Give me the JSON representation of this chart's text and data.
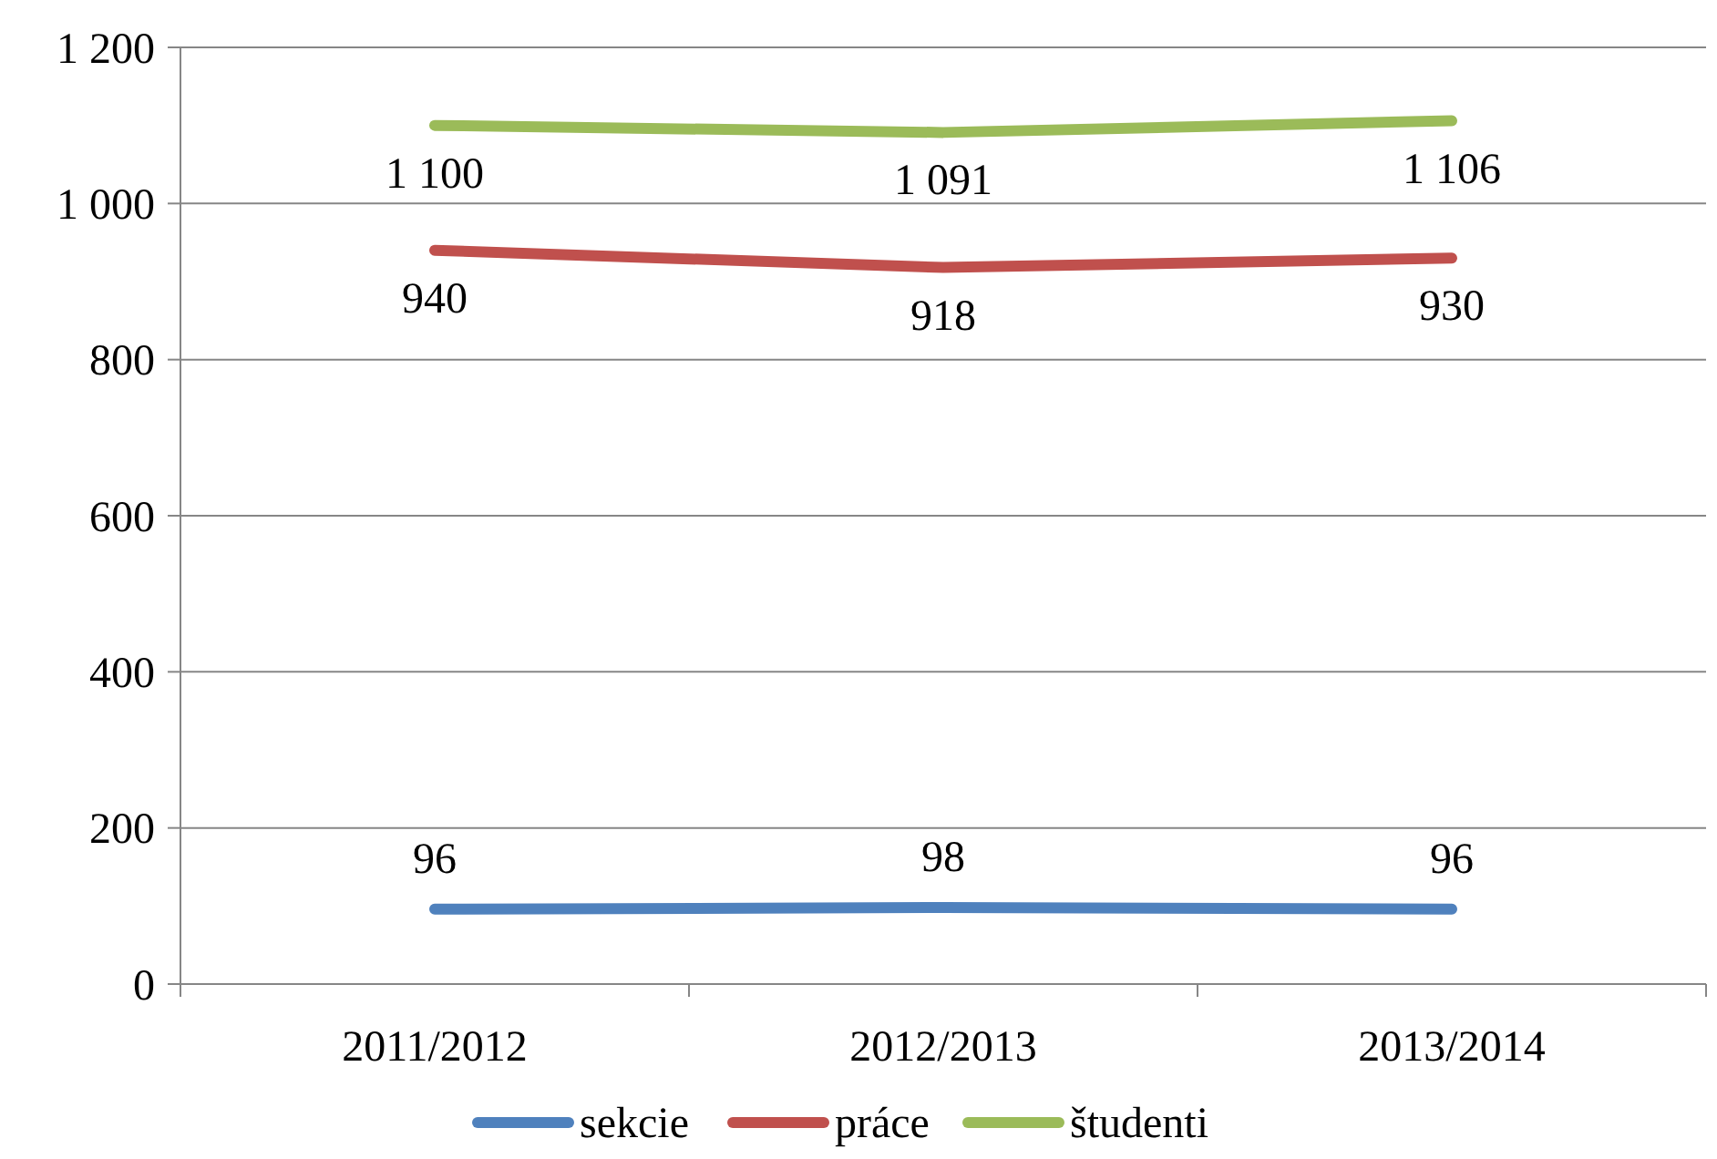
{
  "chart_data": {
    "type": "line",
    "categories": [
      "2011/2012",
      "2012/2013",
      "2013/2014"
    ],
    "series": [
      {
        "name": "sekcie",
        "color": "#4f81bd",
        "values": [
          96,
          98,
          96
        ],
        "value_labels": [
          "96",
          "98",
          "96"
        ]
      },
      {
        "name": "práce",
        "color": "#c0504d",
        "values": [
          940,
          918,
          930
        ],
        "value_labels": [
          "940",
          "918",
          "930"
        ]
      },
      {
        "name": "študenti",
        "color": "#9bbb59",
        "values": [
          1100,
          1091,
          1106
        ],
        "value_labels": [
          "1 100",
          "1 091",
          "1 106"
        ]
      }
    ],
    "ylim": [
      0,
      1200
    ],
    "yticks": [
      0,
      200,
      400,
      600,
      800,
      {
        "value": 1000,
        "label": "1 000"
      },
      {
        "value": 1200,
        "label": "1 200"
      }
    ],
    "grid": "y",
    "legend": "bottom",
    "marker": "none",
    "line_style": "solid"
  }
}
